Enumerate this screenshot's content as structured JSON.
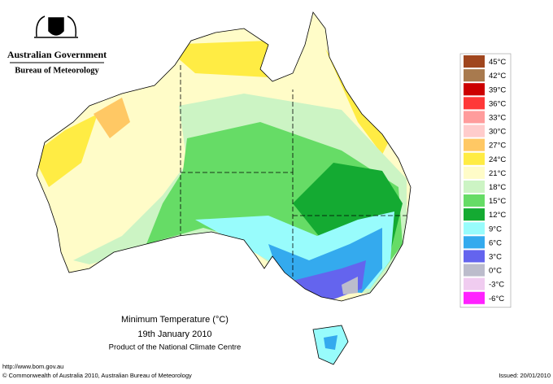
{
  "header": {
    "agency": "Australian Government",
    "bureau": "Bureau of Meteorology"
  },
  "legend": {
    "items": [
      {
        "label": "45°C",
        "color": "#a0461e"
      },
      {
        "label": "42°C",
        "color": "#a87a4e"
      },
      {
        "label": "39°C",
        "color": "#cc0000"
      },
      {
        "label": "36°C",
        "color": "#ff3838"
      },
      {
        "label": "33°C",
        "color": "#ff9c9c"
      },
      {
        "label": "30°C",
        "color": "#ffcccc"
      },
      {
        "label": "27°C",
        "color": "#ffc864"
      },
      {
        "label": "24°C",
        "color": "#ffec44"
      },
      {
        "label": "21°C",
        "color": "#fffcc8"
      },
      {
        "label": "18°C",
        "color": "#ccf4c4"
      },
      {
        "label": "15°C",
        "color": "#66dc66"
      },
      {
        "label": "12°C",
        "color": "#14aa32"
      },
      {
        "label": "9°C",
        "color": "#98fcfc"
      },
      {
        "label": "6°C",
        "color": "#34aaee"
      },
      {
        "label": "3°C",
        "color": "#6464ee"
      },
      {
        "label": "0°C",
        "color": "#bcbccc"
      },
      {
        "label": "-3°C",
        "color": "#f0ccf0"
      },
      {
        "label": "-6°C",
        "color": "#ff22ff"
      }
    ]
  },
  "caption": {
    "title": "Minimum Temperature (°C)",
    "date": "19th January 2010",
    "product": "Product of the National Climate Centre"
  },
  "footer": {
    "url": "http://www.bom.gov.au",
    "copyright": "© Commonwealth of Australia 2010, Australian Bureau of Meteorology",
    "issued": "Issued: 20/01/2010"
  }
}
